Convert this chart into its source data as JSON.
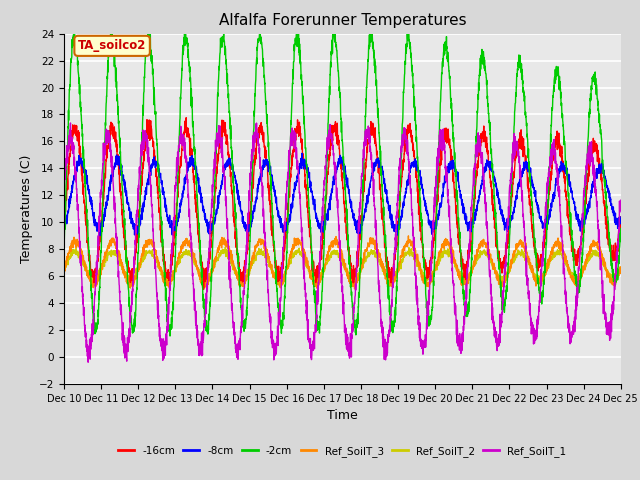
{
  "title": "Alfalfa Forerunner Temperatures",
  "xlabel": "Time",
  "ylabel": "Temperatures (C)",
  "xlim": [
    0,
    15
  ],
  "ylim": [
    -2,
    24
  ],
  "yticks": [
    -2,
    0,
    2,
    4,
    6,
    8,
    10,
    12,
    14,
    16,
    18,
    20,
    22,
    24
  ],
  "x_tick_labels": [
    "Dec 10",
    "Dec 11",
    "Dec 12",
    "Dec 13",
    "Dec 14",
    "Dec 15",
    "Dec 16",
    "Dec 17",
    "Dec 18",
    "Dec 19",
    "Dec 20",
    "Dec 21",
    "Dec 22",
    "Dec 23",
    "Dec 24",
    "Dec 25"
  ],
  "annotation_text": "TA_soilco2",
  "annotation_color": "#cc0000",
  "annotation_bg": "#ffffcc",
  "annotation_border": "#cc6600",
  "series": {
    "neg16cm": {
      "color": "#ff0000",
      "label": "-16cm"
    },
    "neg8cm": {
      "color": "#0000ff",
      "label": "-8cm"
    },
    "neg2cm": {
      "color": "#00cc00",
      "label": "-2cm"
    },
    "ref3": {
      "color": "#ff8800",
      "label": "Ref_SoilT_3"
    },
    "ref2": {
      "color": "#cccc00",
      "label": "Ref_SoilT_2"
    },
    "ref1": {
      "color": "#cc00cc",
      "label": "Ref_SoilT_1"
    }
  },
  "bg_color": "#d8d8d8",
  "plot_bg": "#e8e8e8"
}
